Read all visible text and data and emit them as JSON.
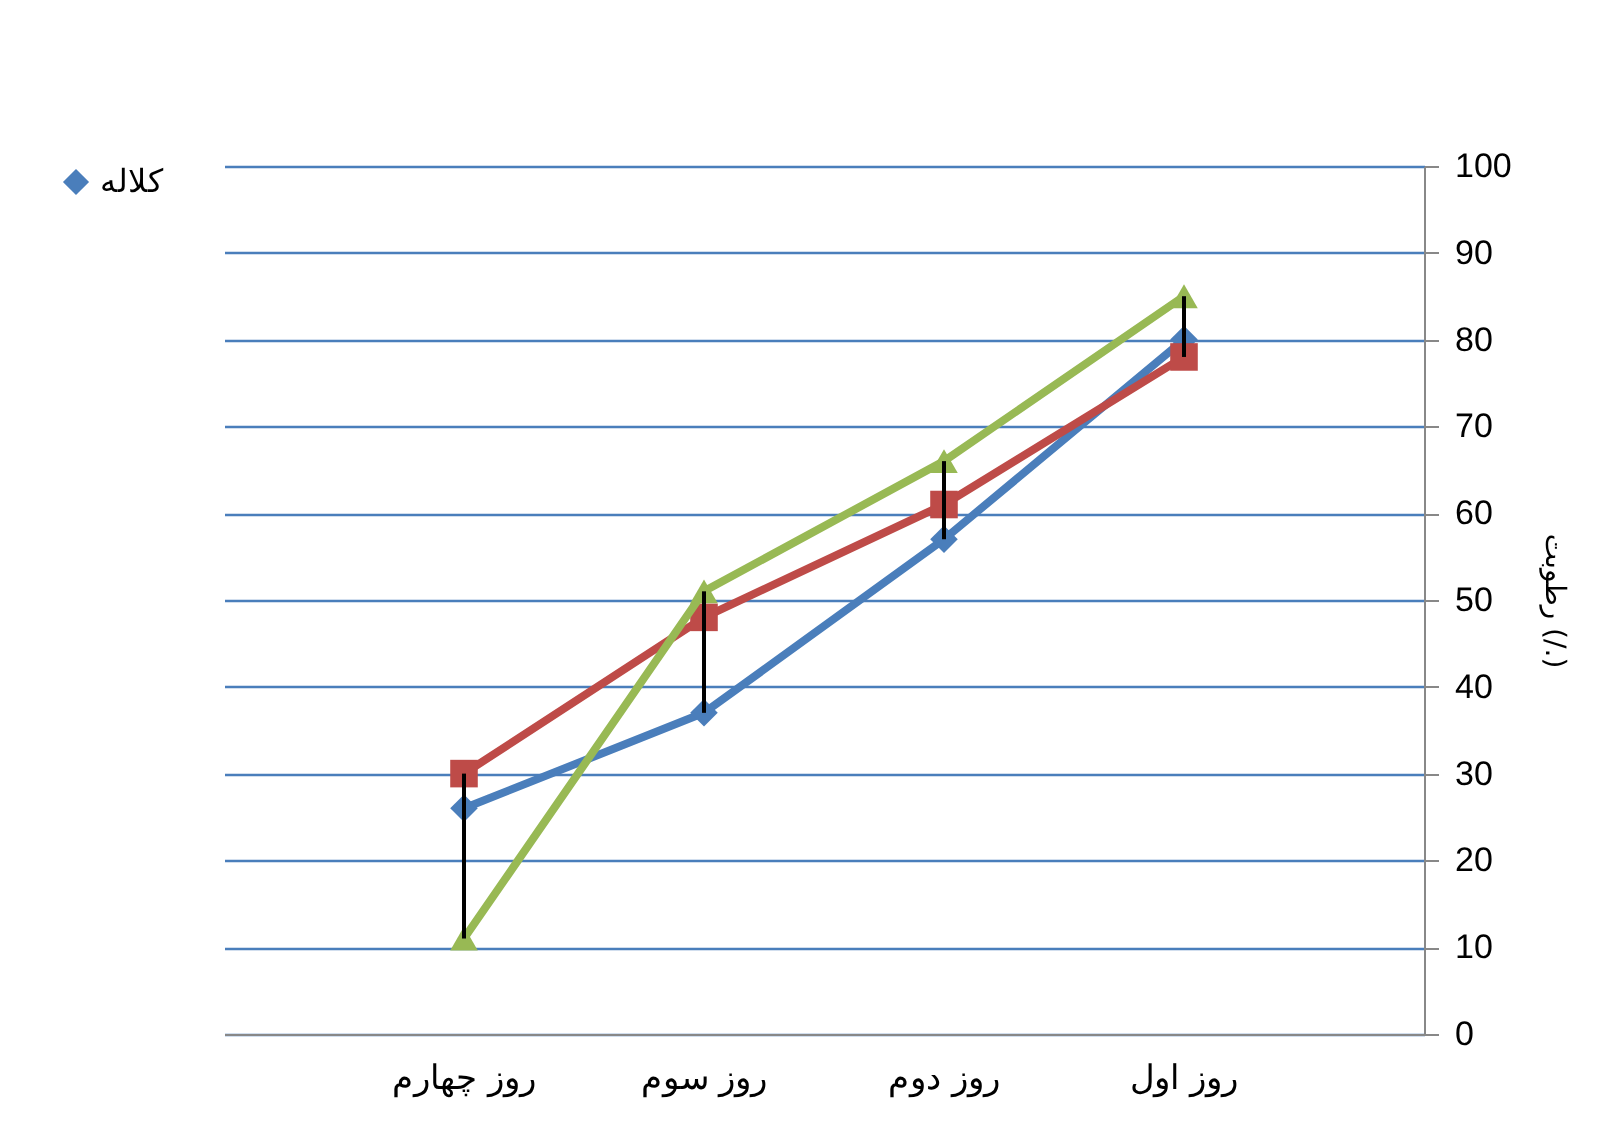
{
  "chart_data": {
    "type": "line",
    "ylabel": "رطوبت (/.)",
    "categories": [
      "روز چهارم",
      "روز سوم",
      "روز دوم",
      "روز اول"
    ],
    "ylim": [
      0,
      100
    ],
    "yticks": [
      0,
      10,
      20,
      30,
      40,
      50,
      60,
      70,
      80,
      90,
      100
    ],
    "grid": "y",
    "legend": "left",
    "series": [
      {
        "name": "کلاله",
        "color": "#4a7ebb",
        "marker": "diamond",
        "values": [
          26,
          37,
          57,
          80
        ],
        "errors": [
          [
            11,
            30
          ],
          [
            37,
            51
          ],
          [
            57,
            66
          ],
          [
            78,
            85
          ]
        ]
      },
      {
        "color": "#be4b48",
        "marker": "square",
        "values": [
          30,
          48,
          61,
          78
        ]
      },
      {
        "color": "#98b954",
        "marker": "triangle",
        "values": [
          11,
          51,
          66,
          85
        ]
      }
    ]
  }
}
